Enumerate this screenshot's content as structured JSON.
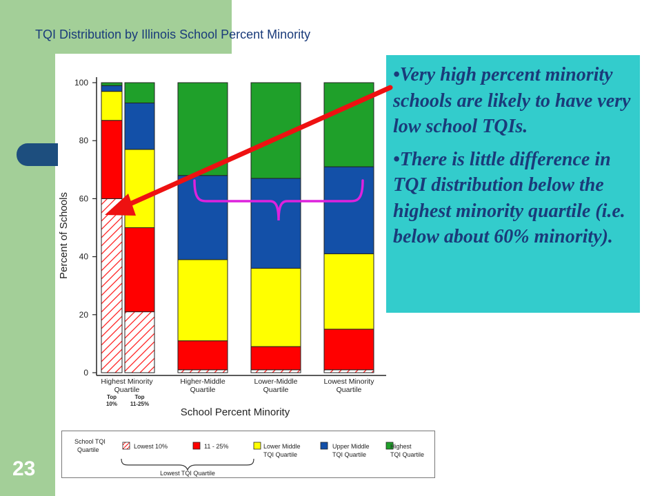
{
  "slide": {
    "title": "TQI Distribution by Illinois School Percent Minority",
    "number": "23"
  },
  "callout": {
    "bullet1": "•Very high percent minority schools are likely to have very low school TQIs.",
    "bullet2": "•There is little difference in TQI distribution below the highest minority quartile (i.e. below about 60% minority)."
  },
  "colors": {
    "lowest10": "#ffffff",
    "hatch": "#ff2020",
    "p11_25": "#ff0000",
    "lower_middle": "#ffff00",
    "upper_middle": "#1350a8",
    "highest": "#1fa02a",
    "arrow": "#ee1111",
    "brace": "#dd22dd",
    "callout_bg": "#33cccc",
    "title_text": "#1a3b7a"
  },
  "legend": {
    "title_line1": "School TQI",
    "title_line2": "Quartile",
    "items": [
      {
        "key": "lowest10",
        "line1": "Lowest 10%",
        "line2": ""
      },
      {
        "key": "p11_25",
        "line1": "11 - 25%",
        "line2": ""
      },
      {
        "key": "lower_middle",
        "line1": "Lower Middle",
        "line2": "TQI Quartile"
      },
      {
        "key": "upper_middle",
        "line1": "Upper Middle",
        "line2": "TQI Quartile"
      },
      {
        "key": "highest",
        "line1": "Highest",
        "line2": "TQI Quartile"
      }
    ],
    "brace_label": "Lowest TQI Quartile"
  },
  "chart_data": {
    "type": "bar",
    "stacked": true,
    "title": "",
    "xlabel": "School Percent Minority",
    "ylabel": "Percent of Schools",
    "ylim": [
      0,
      100
    ],
    "yticks": [
      0,
      20,
      40,
      60,
      80,
      100
    ],
    "grid": false,
    "categories": [
      {
        "group_line1": "Highest Minority",
        "group_line2": "Quartile",
        "sub_line1": "Top",
        "sub_line2": "10%"
      },
      {
        "group_line1": "",
        "group_line2": "",
        "sub_line1": "Top",
        "sub_line2": "11-25%"
      },
      {
        "group_line1": "Higher-Middle",
        "group_line2": "Quartile",
        "sub_line1": "",
        "sub_line2": ""
      },
      {
        "group_line1": "Lower-Middle",
        "group_line2": "Quartile",
        "sub_line1": "",
        "sub_line2": ""
      },
      {
        "group_line1": "Lowest Minority",
        "group_line2": "Quartile",
        "sub_line1": "",
        "sub_line2": ""
      }
    ],
    "series": [
      {
        "key": "lowest10",
        "name": "Lowest 10%",
        "values": [
          60,
          21,
          1,
          1,
          1
        ]
      },
      {
        "key": "p11_25",
        "name": "11 - 25%",
        "values": [
          27,
          29,
          10,
          8,
          14
        ]
      },
      {
        "key": "lower_middle",
        "name": "Lower Middle TQI Quartile",
        "values": [
          10,
          27,
          28,
          27,
          26
        ]
      },
      {
        "key": "upper_middle",
        "name": "Upper Middle TQI Quartile",
        "values": [
          2,
          16,
          29,
          31,
          30
        ]
      },
      {
        "key": "highest",
        "name": "Highest TQI Quartile",
        "values": [
          1,
          7,
          32,
          33,
          29
        ]
      }
    ]
  }
}
